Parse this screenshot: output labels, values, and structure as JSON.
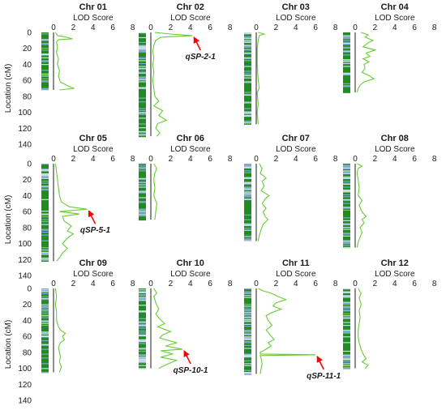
{
  "chart_data": {
    "type": "line",
    "x_axis_label": "LOD Score",
    "y_axis_label": "Location (cM)",
    "x_ticks": [
      0,
      2,
      4,
      6,
      8
    ],
    "y_ticks": [
      0,
      20,
      40,
      60,
      80,
      100,
      120,
      140
    ],
    "xlim": [
      0,
      8
    ],
    "ylim": [
      0,
      140
    ],
    "y_direction": "downward",
    "line_color": "#66cc33",
    "marker_color": "#1e8c1e",
    "arrow_color": "#ff0000",
    "panels": [
      {
        "title": "Chr 01",
        "length": 72,
        "lod": [
          [
            0,
            0.2
          ],
          [
            4,
            0.4
          ],
          [
            6,
            1.3
          ],
          [
            8,
            1.9
          ],
          [
            9,
            0.5
          ],
          [
            12,
            0.3
          ],
          [
            18,
            0.4
          ],
          [
            26,
            0.3
          ],
          [
            33,
            0.5
          ],
          [
            40,
            0.4
          ],
          [
            48,
            0.6
          ],
          [
            55,
            0.5
          ],
          [
            62,
            0.7
          ],
          [
            68,
            1.6
          ],
          [
            70,
            2.1
          ],
          [
            72,
            0.6
          ]
        ]
      },
      {
        "title": "Chr 02",
        "length": 130,
        "lod": [
          [
            0,
            0.4
          ],
          [
            2,
            2.0
          ],
          [
            4,
            4.2
          ],
          [
            6,
            1.0
          ],
          [
            10,
            0.5
          ],
          [
            16,
            0.3
          ],
          [
            24,
            0.2
          ],
          [
            32,
            0.3
          ],
          [
            40,
            0.2
          ],
          [
            50,
            0.3
          ],
          [
            60,
            0.2
          ],
          [
            70,
            0.3
          ],
          [
            80,
            0.4
          ],
          [
            86,
            0.8
          ],
          [
            92,
            0.3
          ],
          [
            98,
            1.2
          ],
          [
            104,
            0.8
          ],
          [
            110,
            1.6
          ],
          [
            114,
            0.7
          ],
          [
            120,
            0.5
          ],
          [
            126,
            0.9
          ],
          [
            130,
            0.6
          ]
        ],
        "qtl": {
          "label": "qSP-2-1",
          "pos": 4,
          "lod": 4.2
        }
      },
      {
        "title": "Chr 03",
        "length": 115,
        "lod": [
          [
            0,
            0.2
          ],
          [
            2,
            0.8
          ],
          [
            4,
            0.3
          ],
          [
            10,
            0.2
          ],
          [
            20,
            0.1
          ],
          [
            40,
            0.1
          ],
          [
            60,
            0.2
          ],
          [
            70,
            0.3
          ],
          [
            75,
            0.1
          ],
          [
            90,
            0.2
          ],
          [
            100,
            0.1
          ],
          [
            115,
            0.2
          ]
        ]
      },
      {
        "title": "Chr 04",
        "length": 75,
        "lod": [
          [
            0,
            0.6
          ],
          [
            3,
            1.3
          ],
          [
            6,
            1.0
          ],
          [
            10,
            1.8
          ],
          [
            13,
            1.3
          ],
          [
            18,
            0.8
          ],
          [
            22,
            2.0
          ],
          [
            26,
            1.1
          ],
          [
            30,
            1.5
          ],
          [
            33,
            0.8
          ],
          [
            37,
            1.4
          ],
          [
            40,
            0.9
          ],
          [
            45,
            1.0
          ],
          [
            50,
            0.7
          ],
          [
            54,
            1.4
          ],
          [
            58,
            1.9
          ],
          [
            62,
            0.9
          ],
          [
            66,
            0.5
          ],
          [
            70,
            0.3
          ],
          [
            75,
            0.2
          ]
        ]
      },
      {
        "title": "Chr 05",
        "length": 122,
        "lod": [
          [
            0,
            0.2
          ],
          [
            10,
            0.3
          ],
          [
            20,
            0.4
          ],
          [
            30,
            0.5
          ],
          [
            40,
            0.6
          ],
          [
            48,
            0.8
          ],
          [
            54,
            1.6
          ],
          [
            57,
            3.4
          ],
          [
            60,
            0.6
          ],
          [
            63,
            2.6
          ],
          [
            66,
            0.9
          ],
          [
            72,
            1.1
          ],
          [
            78,
            1.8
          ],
          [
            84,
            1.4
          ],
          [
            88,
            2.0
          ],
          [
            92,
            1.5
          ],
          [
            96,
            1.2
          ],
          [
            100,
            0.9
          ],
          [
            106,
            1.4
          ],
          [
            112,
            0.9
          ],
          [
            118,
            0.6
          ],
          [
            122,
            0.3
          ]
        ],
        "qtl": {
          "label": "qSP-5-1",
          "pos": 57,
          "lod": 3.4
        }
      },
      {
        "title": "Chr 06",
        "length": 70,
        "lod": [
          [
            0,
            0.3
          ],
          [
            6,
            0.6
          ],
          [
            12,
            0.4
          ],
          [
            20,
            0.3
          ],
          [
            30,
            0.4
          ],
          [
            40,
            0.3
          ],
          [
            50,
            0.6
          ],
          [
            60,
            0.5
          ],
          [
            70,
            0.4
          ]
        ]
      },
      {
        "title": "Chr 07",
        "length": 97,
        "lod": [
          [
            0,
            0.3
          ],
          [
            6,
            0.6
          ],
          [
            12,
            0.4
          ],
          [
            18,
            1.0
          ],
          [
            22,
            0.6
          ],
          [
            28,
            0.8
          ],
          [
            34,
            0.5
          ],
          [
            40,
            1.3
          ],
          [
            44,
            0.9
          ],
          [
            50,
            0.6
          ],
          [
            56,
            1.0
          ],
          [
            60,
            0.7
          ],
          [
            66,
            0.9
          ],
          [
            70,
            1.2
          ],
          [
            76,
            0.7
          ],
          [
            82,
            0.5
          ],
          [
            90,
            0.3
          ],
          [
            97,
            0.2
          ]
        ]
      },
      {
        "title": "Chr 08",
        "length": 105,
        "lod": [
          [
            0,
            0.2
          ],
          [
            3,
            0.7
          ],
          [
            6,
            0.3
          ],
          [
            12,
            0.2
          ],
          [
            20,
            0.3
          ],
          [
            30,
            0.4
          ],
          [
            40,
            0.3
          ],
          [
            46,
            0.7
          ],
          [
            52,
            0.4
          ],
          [
            58,
            0.6
          ],
          [
            62,
            0.8
          ],
          [
            66,
            1.1
          ],
          [
            70,
            0.7
          ],
          [
            74,
            0.9
          ],
          [
            80,
            0.5
          ],
          [
            86,
            0.7
          ],
          [
            92,
            0.5
          ],
          [
            98,
            0.3
          ],
          [
            105,
            0.2
          ]
        ]
      },
      {
        "title": "Chr 09",
        "length": 105,
        "lod": [
          [
            0,
            0.2
          ],
          [
            10,
            0.3
          ],
          [
            20,
            0.2
          ],
          [
            30,
            0.3
          ],
          [
            40,
            0.3
          ],
          [
            48,
            0.5
          ],
          [
            52,
            0.7
          ],
          [
            56,
            1.2
          ],
          [
            60,
            0.9
          ],
          [
            64,
            1.1
          ],
          [
            68,
            0.7
          ],
          [
            74,
            0.5
          ],
          [
            80,
            0.6
          ],
          [
            86,
            0.7
          ],
          [
            92,
            0.6
          ],
          [
            98,
            0.8
          ],
          [
            105,
            0.6
          ]
        ]
      },
      {
        "title": "Chr 10",
        "length": 100,
        "lod": [
          [
            0,
            0.3
          ],
          [
            6,
            0.6
          ],
          [
            10,
            0.3
          ],
          [
            18,
            0.5
          ],
          [
            26,
            0.8
          ],
          [
            32,
            0.5
          ],
          [
            38,
            0.9
          ],
          [
            44,
            1.4
          ],
          [
            48,
            0.7
          ],
          [
            54,
            2.0
          ],
          [
            58,
            1.2
          ],
          [
            62,
            0.9
          ],
          [
            68,
            2.6
          ],
          [
            72,
            1.5
          ],
          [
            76,
            3.2
          ],
          [
            78,
            1.0
          ],
          [
            82,
            2.2
          ],
          [
            86,
            1.0
          ],
          [
            90,
            2.6
          ],
          [
            94,
            1.8
          ],
          [
            98,
            1.1
          ],
          [
            100,
            0.8
          ]
        ],
        "qtl": {
          "label": "qSP-10-1",
          "pos": 76,
          "lod": 3.2
        }
      },
      {
        "title": "Chr 11",
        "length": 107,
        "lod": [
          [
            0,
            0.2
          ],
          [
            3,
            0.7
          ],
          [
            6,
            1.5
          ],
          [
            10,
            2.2
          ],
          [
            14,
            3.0
          ],
          [
            18,
            2.0
          ],
          [
            22,
            1.7
          ],
          [
            26,
            2.5
          ],
          [
            30,
            1.6
          ],
          [
            34,
            1.0
          ],
          [
            40,
            1.2
          ],
          [
            46,
            1.6
          ],
          [
            52,
            1.0
          ],
          [
            58,
            1.4
          ],
          [
            64,
            1.8
          ],
          [
            68,
            1.2
          ],
          [
            72,
            1.5
          ],
          [
            76,
            1.0
          ],
          [
            80,
            0.4
          ],
          [
            82,
            0.4
          ],
          [
            83,
            6.0
          ],
          [
            84,
            0.4
          ],
          [
            88,
            0.5
          ],
          [
            94,
            0.6
          ],
          [
            100,
            0.5
          ],
          [
            107,
            0.4
          ]
        ],
        "qtl": {
          "label": "qSP-11-1",
          "pos": 83,
          "lod": 6.0
        }
      },
      {
        "title": "Chr 12",
        "length": 100,
        "lod": [
          [
            0,
            0.3
          ],
          [
            6,
            0.6
          ],
          [
            12,
            0.4
          ],
          [
            20,
            0.6
          ],
          [
            28,
            0.4
          ],
          [
            36,
            0.5
          ],
          [
            44,
            0.4
          ],
          [
            52,
            0.3
          ],
          [
            60,
            0.3
          ],
          [
            68,
            0.4
          ],
          [
            76,
            0.6
          ],
          [
            82,
            0.8
          ],
          [
            88,
            1.1
          ],
          [
            92,
            0.7
          ],
          [
            96,
            1.3
          ],
          [
            100,
            1.0
          ]
        ]
      }
    ]
  }
}
